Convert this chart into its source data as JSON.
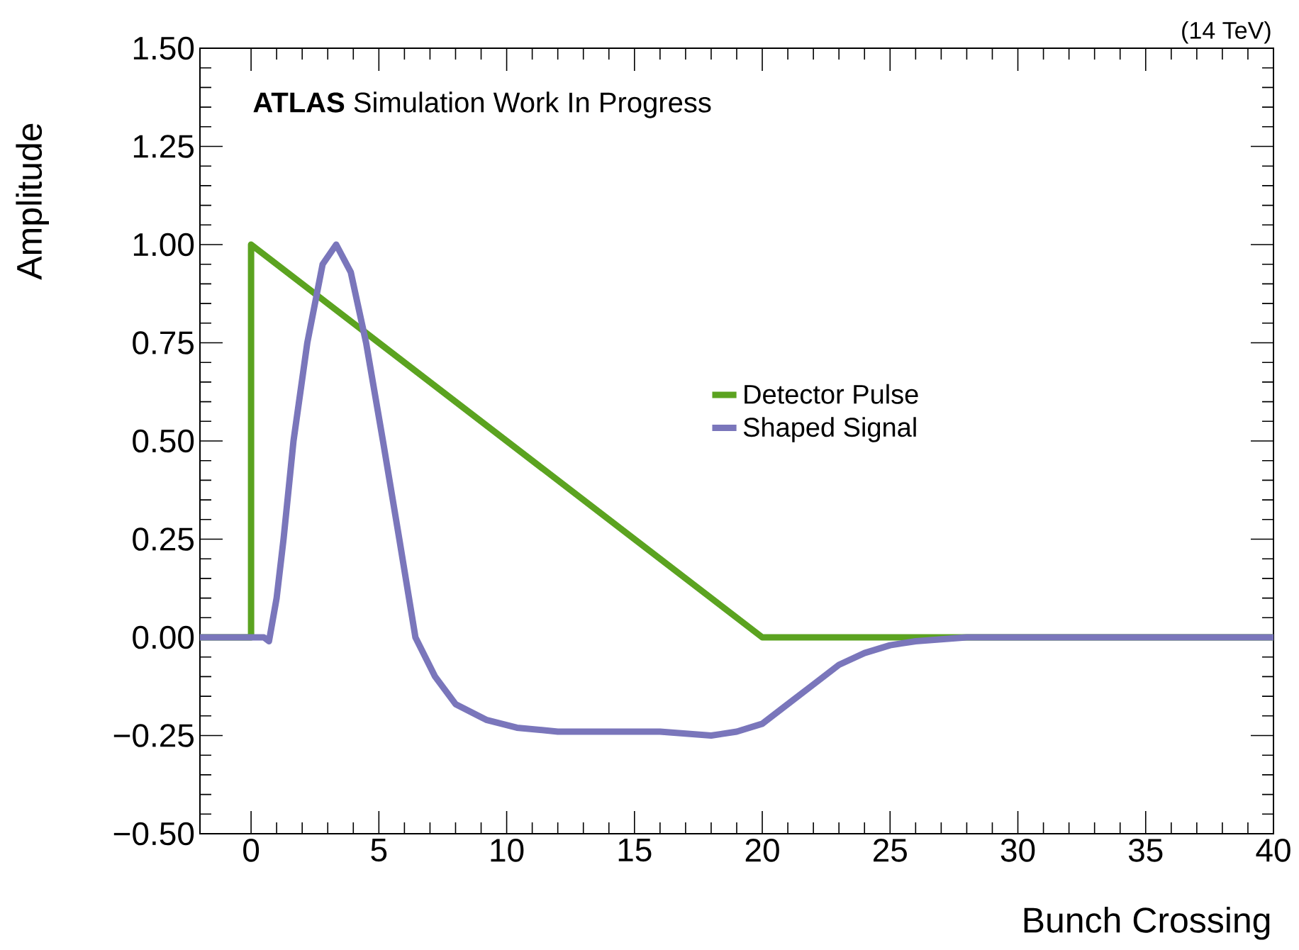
{
  "chart_data": {
    "type": "line",
    "xlabel": "Bunch Crossing",
    "ylabel": "Amplitude",
    "xlim": [
      -2,
      40
    ],
    "ylim": [
      -0.5,
      1.5
    ],
    "xticks": [
      0,
      5,
      10,
      15,
      20,
      25,
      30,
      35,
      40
    ],
    "yticks": [
      {
        "value": -0.5,
        "label": "−0.50"
      },
      {
        "value": -0.25,
        "label": "−0.25"
      },
      {
        "value": 0,
        "label": "0.00"
      },
      {
        "value": 0.25,
        "label": "0.25"
      },
      {
        "value": 0.5,
        "label": "0.50"
      },
      {
        "value": 0.75,
        "label": "0.75"
      },
      {
        "value": 1.0,
        "label": "1.00"
      },
      {
        "value": 1.25,
        "label": "1.25"
      },
      {
        "value": 1.5,
        "label": "1.50"
      }
    ],
    "grid": false,
    "legend": "right",
    "marker": "none",
    "line_style": "solid",
    "annotations": [
      "**ATLAS** Simulation Work In Progress",
      "(14 TeV)"
    ],
    "series": [
      {
        "name": "Detector Pulse",
        "color": "#5ba320",
        "x": [
          -2,
          0,
          0,
          20,
          40
        ],
        "values": [
          0,
          0,
          1,
          0,
          0
        ]
      },
      {
        "name": "Shaped Signal",
        "color": "#7a76bb",
        "x": [
          -2,
          0.5,
          0.7,
          1.0,
          1.27,
          1.66,
          2.2,
          2.8,
          3.33,
          3.9,
          4.5,
          5.16,
          5.8,
          6.43,
          7.2,
          8,
          9.2,
          10.4,
          12,
          14,
          16,
          18,
          19,
          20,
          21,
          22,
          23,
          24,
          25,
          26,
          28,
          40
        ],
        "values": [
          0,
          0,
          -0.01,
          0.1,
          0.25,
          0.5,
          0.75,
          0.95,
          1.0,
          0.93,
          0.75,
          0.5,
          0.25,
          0,
          -0.1,
          -0.17,
          -0.21,
          -0.23,
          -0.24,
          -0.24,
          -0.24,
          -0.25,
          -0.24,
          -0.22,
          -0.17,
          -0.12,
          -0.07,
          -0.04,
          -0.02,
          -0.01,
          0,
          0
        ]
      }
    ]
  }
}
